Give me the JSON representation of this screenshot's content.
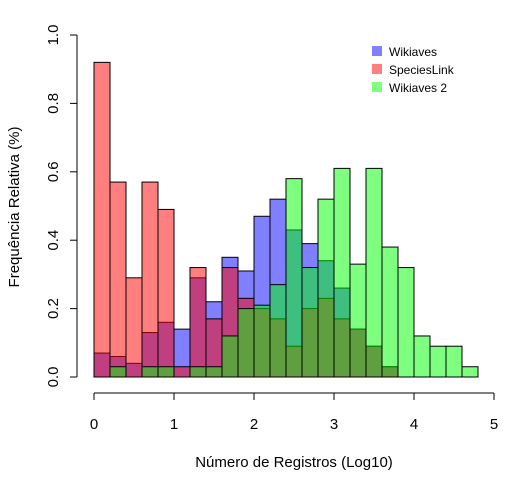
{
  "chart_data": {
    "type": "bar",
    "xlabel": "Número de Registros (Log10)",
    "ylabel": "Frequência Relativa (%)",
    "xlim": [
      0,
      5
    ],
    "ylim": [
      0,
      1
    ],
    "x_ticks": [
      "0",
      "1",
      "2",
      "3",
      "4",
      "5"
    ],
    "y_ticks": [
      "0.0",
      "0.2",
      "0.4",
      "0.6",
      "0.8",
      "1.0"
    ],
    "bin_width": 0.2,
    "bin_starts": [
      0,
      0.2,
      0.4,
      0.6,
      0.8,
      1.0,
      1.2,
      1.4,
      1.6,
      1.8,
      2.0,
      2.2,
      2.4,
      2.6,
      2.8,
      3.0,
      3.2,
      3.4,
      3.6,
      3.8,
      4.0,
      4.2,
      4.4,
      4.6
    ],
    "legend_position": "top-right",
    "grid": false,
    "series": [
      {
        "name": "Wikiaves",
        "color": "#0000ff",
        "values": [
          0.07,
          0.06,
          0.04,
          0.13,
          0.16,
          0.14,
          0.29,
          0.22,
          0.35,
          0.31,
          0.47,
          0.52,
          0.43,
          0.39,
          0.34,
          0.26,
          0.14,
          0.09,
          0.03,
          0.0,
          0.0,
          0.0,
          0.0,
          0.0
        ]
      },
      {
        "name": "SpeciesLink",
        "color": "#ff0000",
        "values": [
          0.92,
          0.57,
          0.29,
          0.57,
          0.49,
          0.03,
          0.32,
          0.17,
          0.32,
          0.23,
          0.2,
          0.17,
          0.09,
          0.2,
          0.23,
          0.17,
          0.14,
          0.09,
          0.03,
          0.0,
          0.0,
          0.0,
          0.0,
          0.0
        ]
      },
      {
        "name": "Wikiaves 2",
        "color": "#00ff00",
        "values": [
          0.0,
          0.03,
          0.0,
          0.03,
          0.03,
          0.0,
          0.03,
          0.03,
          0.12,
          0.2,
          0.21,
          0.27,
          0.58,
          0.32,
          0.52,
          0.61,
          0.33,
          0.61,
          0.38,
          0.32,
          0.12,
          0.09,
          0.09,
          0.03
        ]
      }
    ]
  }
}
